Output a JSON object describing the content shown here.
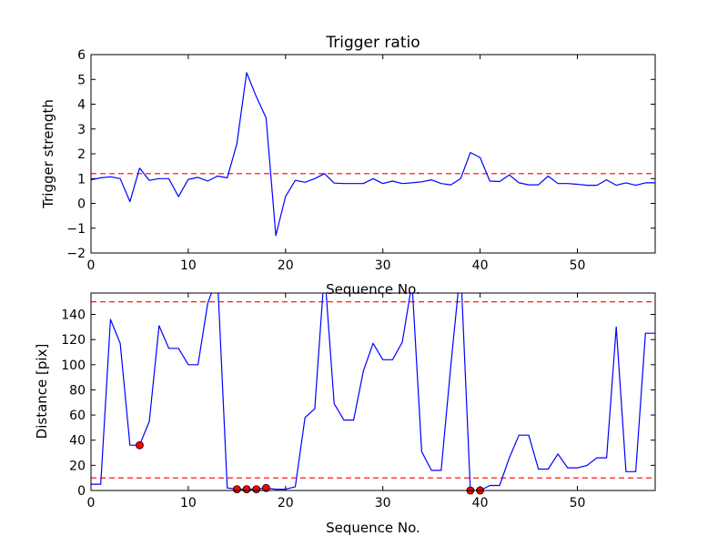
{
  "chart_data": [
    {
      "type": "line",
      "title": "Trigger ratio",
      "xlabel": "Sequence No.",
      "ylabel": "Trigger strength",
      "xlim": [
        0,
        58
      ],
      "ylim": [
        -2,
        6
      ],
      "xticks": [
        0,
        10,
        20,
        30,
        40,
        50
      ],
      "yticks": [
        -2,
        -1,
        0,
        1,
        2,
        3,
        4,
        5,
        6
      ],
      "grid": false,
      "series": [
        {
          "color": "#0000ff",
          "x": [
            0,
            1,
            2,
            3,
            4,
            5,
            6,
            7,
            8,
            9,
            10,
            11,
            12,
            13,
            14,
            15,
            16,
            17,
            18,
            19,
            20,
            21,
            22,
            23,
            24,
            25,
            26,
            27,
            28,
            29,
            30,
            31,
            32,
            33,
            34,
            35,
            36,
            37,
            38,
            39,
            40,
            41,
            42,
            43,
            44,
            45,
            46,
            47,
            48,
            49,
            50,
            51,
            52,
            53,
            54,
            55,
            56,
            57,
            58
          ],
          "y": [
            0.95,
            1.03,
            1.07,
            1.0,
            0.07,
            1.42,
            0.93,
            1.0,
            1.0,
            0.27,
            0.97,
            1.05,
            0.9,
            1.1,
            1.03,
            2.4,
            5.27,
            4.3,
            3.45,
            -1.3,
            0.28,
            0.93,
            0.85,
            1.0,
            1.2,
            0.82,
            0.8,
            0.8,
            0.8,
            1.0,
            0.8,
            0.9,
            0.8,
            0.83,
            0.87,
            0.95,
            0.8,
            0.75,
            1.0,
            2.05,
            1.85,
            0.9,
            0.88,
            1.15,
            0.83,
            0.75,
            0.75,
            1.1,
            0.8,
            0.8,
            0.77,
            0.73,
            0.73,
            0.95,
            0.73,
            0.83,
            0.73,
            0.83,
            0.83
          ]
        }
      ],
      "hlines": [
        {
          "y": 1.2,
          "color": "#ff0000",
          "style": "dashed"
        }
      ]
    },
    {
      "type": "line",
      "title": "",
      "xlabel": "Sequence No.",
      "ylabel": "Distance [pix]",
      "xlim": [
        0,
        58
      ],
      "ylim": [
        0,
        157
      ],
      "xticks": [
        0,
        10,
        20,
        30,
        40,
        50
      ],
      "yticks": [
        0,
        20,
        40,
        60,
        80,
        100,
        120,
        140
      ],
      "grid": false,
      "series": [
        {
          "color": "#0000ff",
          "x": [
            0,
            1,
            2,
            3,
            4,
            5,
            6,
            7,
            8,
            9,
            10,
            11,
            12,
            13,
            14,
            15,
            16,
            17,
            18,
            19,
            20,
            21,
            22,
            23,
            24,
            25,
            26,
            27,
            28,
            29,
            30,
            31,
            32,
            33,
            34,
            35,
            36,
            37,
            38,
            39,
            40,
            41,
            42,
            43,
            44,
            45,
            46,
            47,
            48,
            49,
            50,
            51,
            52,
            53,
            54,
            55,
            56,
            57,
            58
          ],
          "y": [
            5,
            5,
            136,
            117,
            36,
            36,
            55,
            131,
            113,
            113,
            100,
            100,
            149,
            170,
            2,
            1,
            1,
            1,
            2,
            1,
            1,
            3,
            58,
            65,
            175,
            69,
            56,
            56,
            95,
            117,
            104,
            104,
            118,
            165,
            31,
            16,
            16,
            100,
            178,
            0,
            0,
            4,
            4,
            26,
            44,
            44,
            17,
            17,
            29,
            18,
            18,
            20,
            26,
            26,
            130,
            15,
            15,
            125,
            125
          ]
        }
      ],
      "markers": {
        "color": "#ff0000",
        "x": [
          5,
          15,
          16,
          17,
          18,
          39,
          40
        ],
        "y": [
          36,
          1,
          1,
          1,
          2,
          0,
          0
        ]
      },
      "hlines": [
        {
          "y": 150,
          "color": "#ff0000",
          "style": "dashed"
        },
        {
          "y": 10,
          "color": "#ff0000",
          "style": "dashed"
        }
      ]
    }
  ]
}
